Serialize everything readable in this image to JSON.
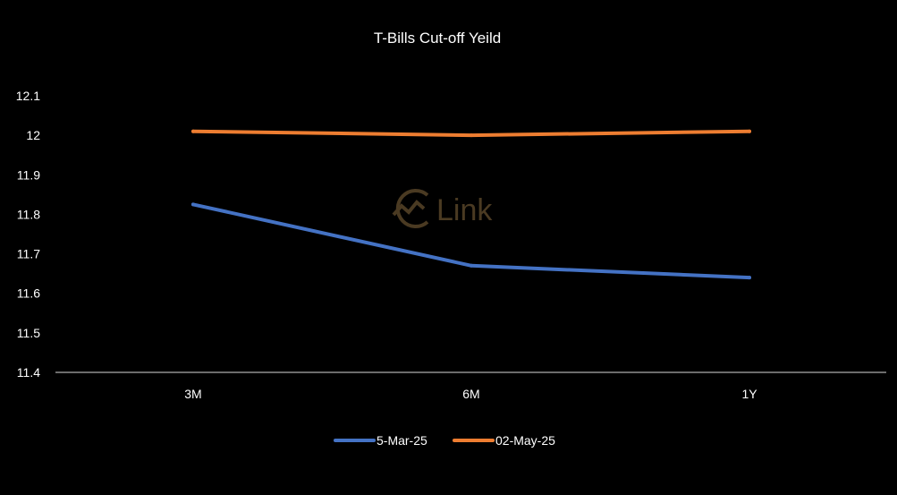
{
  "chart_data": {
    "type": "line",
    "title": "T-Bills Cut-off Yeild",
    "xlabel": "",
    "ylabel": "",
    "categories": [
      "3M",
      "6M",
      "1Y"
    ],
    "series": [
      {
        "name": "5-Mar-25",
        "values": [
          11.825,
          11.67,
          11.64
        ],
        "color": "#4472C4"
      },
      {
        "name": "02-May-25",
        "values": [
          12.01,
          12.0,
          12.01
        ],
        "color": "#ED7D31"
      }
    ],
    "ylim": [
      11.4,
      12.1
    ],
    "yticks": [
      "11.4",
      "11.5",
      "11.6",
      "11.7",
      "11.8",
      "11.9",
      "12",
      "12.1"
    ],
    "grid": false,
    "legend": "bottom"
  },
  "watermark": {
    "text": "Link",
    "icon": "chart-circle-logo-icon",
    "color": "#4a3a22"
  }
}
